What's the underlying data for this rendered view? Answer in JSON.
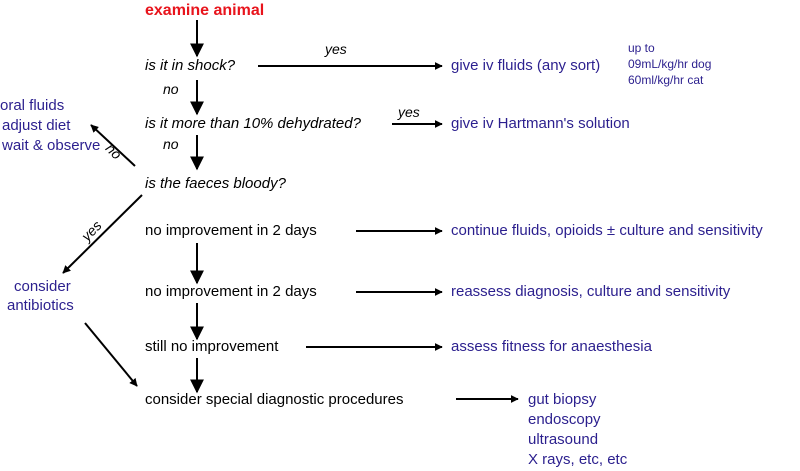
{
  "start": "examine animal",
  "questions": {
    "shock": "is it in shock?",
    "dehydrated": "is it more than 10% dehydrated?",
    "faeces": "is the faeces bloody?"
  },
  "steps": {
    "no_improvement_1": "no improvement in 2 days",
    "no_improvement_2": "no improvement in 2 days",
    "still_no_improvement": "still no improvement",
    "special_procedures": "consider special diagnostic procedures"
  },
  "labels": {
    "yes_shock": "yes",
    "no_shock": "no",
    "yes_dehydrated": "yes",
    "no_dehydrated": "no",
    "no_faeces": "no",
    "yes_faeces": "yes"
  },
  "actions": {
    "iv_fluids": "give iv fluids (any sort)",
    "iv_rates": [
      "up to",
      "09mL/kg/hr dog",
      "60ml/kg/hr cat"
    ],
    "hartmann": "give iv Hartmann's solution",
    "conservative": [
      "oral fluids",
      "adjust diet",
      "wait & observe"
    ],
    "antibiotics": [
      "consider",
      "antibiotics"
    ],
    "continue_fluids": "continue fluids, opioids ± culture and sensitivity",
    "reassess": "reassess diagnosis, culture and sensitivity",
    "anaesthesia": "assess fitness for anaesthesia",
    "diagnostics": [
      "gut biopsy",
      "endoscopy",
      "ultrasound",
      "X rays, etc, etc"
    ]
  },
  "colors": {
    "start": "#e8141c",
    "action": "#2b1f8e",
    "text": "#000000"
  }
}
